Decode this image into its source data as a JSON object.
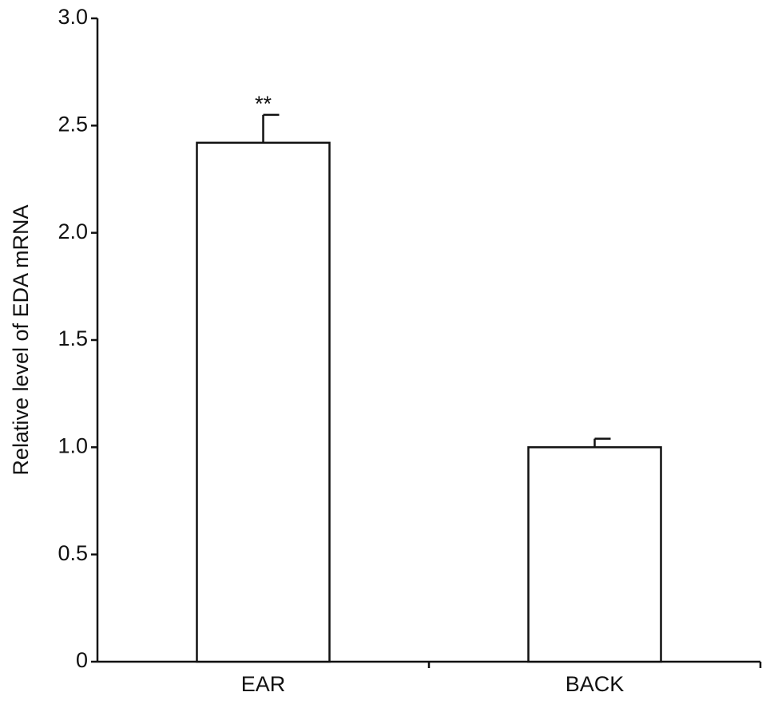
{
  "chart_data": {
    "type": "bar",
    "y_label": "Relative level of EDA mRNA",
    "categories": [
      "EAR",
      "BACK"
    ],
    "values": [
      2.42,
      1.0
    ],
    "errors": [
      0.13,
      0.04
    ],
    "significance": [
      "**",
      null
    ],
    "color": "#ffffff",
    "ylim": [
      0,
      3
    ],
    "yticks": [
      0,
      0.5,
      {
        "value": 1,
        "label": "1.0"
      },
      1.5,
      {
        "value": 2,
        "label": "2.0"
      },
      2.5,
      {
        "value": 3,
        "label": "3.0"
      }
    ],
    "grid": false
  }
}
